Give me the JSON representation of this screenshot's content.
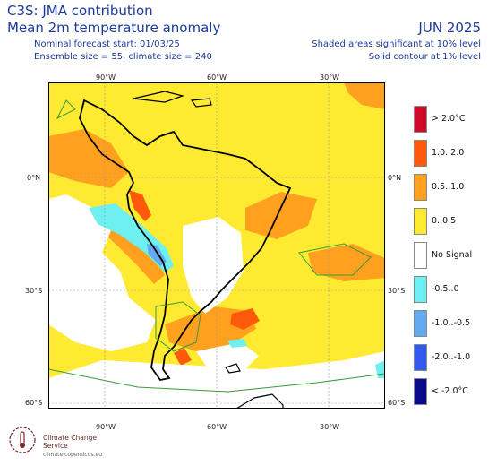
{
  "header": {
    "title_line1": "C3S: JMA contribution",
    "title_line2": "Mean 2m temperature anomaly",
    "meta_line1": "Nominal forecast start: 01/03/25",
    "meta_line2": "Ensemble size = 55, climate size = 240",
    "month": "JUN 2025",
    "sig_line1": "Shaded areas significant at 10% level",
    "sig_line2": "Solid contour at 1% level"
  },
  "axes": {
    "lon_labels": [
      "90°W",
      "60°W",
      "30°W"
    ],
    "lat_labels": [
      "0°N",
      "30°S",
      "60°S"
    ]
  },
  "legend": [
    {
      "label": "> 2.0°C",
      "color": "#cc0a2a"
    },
    {
      "label": "1.0..2.0",
      "color": "#ff5a0a"
    },
    {
      "label": "0.5..1.0",
      "color": "#ffa01e"
    },
    {
      "label": "0..0.5",
      "color": "#ffea32"
    },
    {
      "label": "No Signal",
      "color": "#ffffff"
    },
    {
      "label": "-0.5..0",
      "color": "#6ef0f0"
    },
    {
      "label": "-1.0..-0.5",
      "color": "#64aaf0"
    },
    {
      "label": "-2.0..-1.0",
      "color": "#325af0"
    },
    {
      "label": "< -2.0°C",
      "color": "#0a0a8c"
    }
  ],
  "logo": {
    "name": "Climate Change Service",
    "url": "climate.copernicus.eu"
  }
}
